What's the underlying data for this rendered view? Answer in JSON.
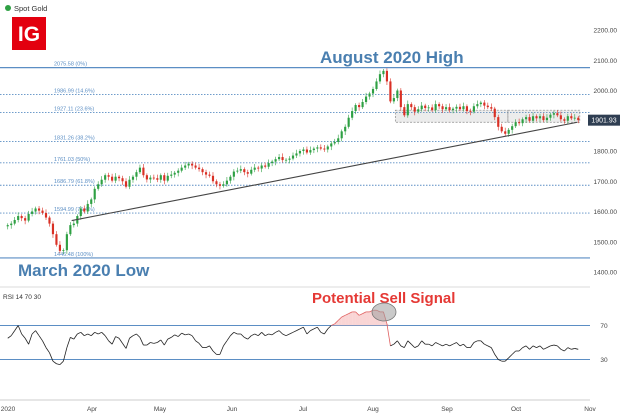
{
  "header": {
    "instrument": "Spot Gold",
    "logo_text": "IG"
  },
  "annotations": {
    "high": "August 2020 High",
    "low": "March 2020 Low",
    "signal": "Potential Sell Signal"
  },
  "colors": {
    "up": "#2ea043",
    "down": "#d93025",
    "fib": "#5b8ec4",
    "trend": "#444444",
    "logo_bg": "#e3000f",
    "rsi_line": "#222222",
    "rsi_over": "#e06060",
    "annot_blue": "#4a7fb0",
    "signal": "#e53935",
    "price_tag": "#2f3e52"
  },
  "chart_data": [
    {
      "type": "candlestick",
      "title": "",
      "ylim": [
        1400,
        2200
      ],
      "yticks": [
        "2200.00",
        "2100.00",
        "2000.00",
        "1900.00",
        "1800.00",
        "1700.00",
        "1600.00",
        "1500.00",
        "1400.00"
      ],
      "x_labels": [
        "2020",
        "Apr",
        "May",
        "Jun",
        "Jul",
        "Aug",
        "Sep",
        "Oct",
        "Nov"
      ],
      "last_price_label": "1901.93",
      "fib_levels": [
        {
          "label": "2075.58 (0%)",
          "value": 2075.58
        },
        {
          "label": "1986.99 (14.6%)",
          "value": 1986.99
        },
        {
          "label": "1927.11 (23.6%)",
          "value": 1927.11
        },
        {
          "label": "1831.26 (38.2%)",
          "value": 1831.26
        },
        {
          "label": "1761.03 (50%)",
          "value": 1761.03
        },
        {
          "label": "1686.79 (61.8%)",
          "value": 1686.79
        },
        {
          "label": "1594.99 (76.4%)",
          "value": 1594.99
        },
        {
          "label": "1446.48 (100%)",
          "value": 1446.48
        }
      ],
      "trendline": {
        "from": [
          "Mar 20",
          1570
        ],
        "to": [
          "Oct 27",
          1895
        ]
      },
      "range_box": [
        {
          "x0": "Aug 11",
          "x1": "Sep 28",
          "y0": 1895,
          "y1": 1935
        },
        {
          "x0": "Sep 28",
          "x1": "Oct 28",
          "y0": 1895,
          "y1": 1935
        }
      ],
      "series": [
        {
          "name": "Spot Gold",
          "closes": [
            1555,
            1560,
            1572,
            1585,
            1578,
            1570,
            1592,
            1600,
            1610,
            1603,
            1595,
            1580,
            1560,
            1525,
            1490,
            1470,
            1472,
            1525,
            1555,
            1560,
            1585,
            1610,
            1600,
            1625,
            1640,
            1675,
            1690,
            1705,
            1720,
            1715,
            1702,
            1715,
            1710,
            1700,
            1682,
            1705,
            1715,
            1730,
            1745,
            1720,
            1706,
            1712,
            1710,
            1705,
            1720,
            1702,
            1718,
            1722,
            1728,
            1735,
            1745,
            1752,
            1758,
            1752,
            1745,
            1740,
            1730,
            1722,
            1718,
            1700,
            1690,
            1685,
            1690,
            1702,
            1715,
            1732,
            1735,
            1740,
            1730,
            1725,
            1738,
            1745,
            1742,
            1752,
            1748,
            1760,
            1765,
            1773,
            1780,
            1770,
            1771,
            1775,
            1785,
            1792,
            1800,
            1805,
            1795,
            1803,
            1808,
            1812,
            1808,
            1805,
            1815,
            1825,
            1830,
            1842,
            1865,
            1880,
            1910,
            1932,
            1952,
            1945,
            1962,
            1980,
            1990,
            2005,
            2030,
            2054,
            2065,
            2030,
            1964,
            1975,
            2000,
            1945,
            1918,
            1955,
            1945,
            1930,
            1938,
            1950,
            1942,
            1944,
            1935,
            1955,
            1948,
            1938,
            1945,
            1935,
            1940,
            1946,
            1938,
            1948,
            1932,
            1930,
            1948,
            1955,
            1960,
            1950,
            1945,
            1940,
            1912,
            1880,
            1865,
            1857,
            1870,
            1882,
            1895,
            1892,
            1905,
            1912,
            1900,
            1915,
            1908,
            1915,
            1902,
            1910,
            1920,
            1925,
            1918,
            1905,
            1900,
            1915,
            1908,
            1910,
            1901.93
          ],
          "rsi": [
            55,
            58,
            64,
            70,
            60,
            55,
            48,
            60,
            64,
            58,
            52,
            44,
            38,
            28,
            25,
            24,
            28,
            44,
            56,
            54,
            60,
            62,
            58,
            60,
            58,
            62,
            60,
            62,
            58,
            52,
            48,
            57,
            55,
            49,
            43,
            55,
            58,
            60,
            56,
            47,
            47,
            50,
            49,
            50,
            53,
            47,
            54,
            56,
            59,
            57,
            61,
            59,
            60,
            58,
            52,
            49,
            44,
            44,
            46,
            40,
            36,
            36,
            46,
            52,
            58,
            62,
            60,
            60,
            56,
            54,
            58,
            60,
            58,
            62,
            58,
            60,
            59,
            62,
            64,
            60,
            58,
            60,
            62,
            64,
            66,
            68,
            60,
            64,
            66,
            68,
            62,
            60,
            66,
            70,
            72,
            76,
            80,
            82,
            84,
            86,
            86,
            82,
            84,
            86,
            86,
            88,
            88,
            86,
            86,
            72,
            46,
            48,
            52,
            46,
            44,
            52,
            48,
            44,
            46,
            52,
            48,
            48,
            46,
            50,
            48,
            46,
            48,
            46,
            48,
            50,
            46,
            48,
            44,
            44,
            50,
            52,
            52,
            48,
            46,
            44,
            36,
            30,
            28,
            28,
            32,
            36,
            40,
            40,
            44,
            46,
            42,
            46,
            44,
            46,
            42,
            44,
            46,
            47,
            46,
            42,
            40,
            44,
            42,
            43,
            42
          ],
          "rsi_levels": [
            "70",
            "30"
          ],
          "rsi_label": "RSI 14 70 30"
        }
      ]
    }
  ]
}
